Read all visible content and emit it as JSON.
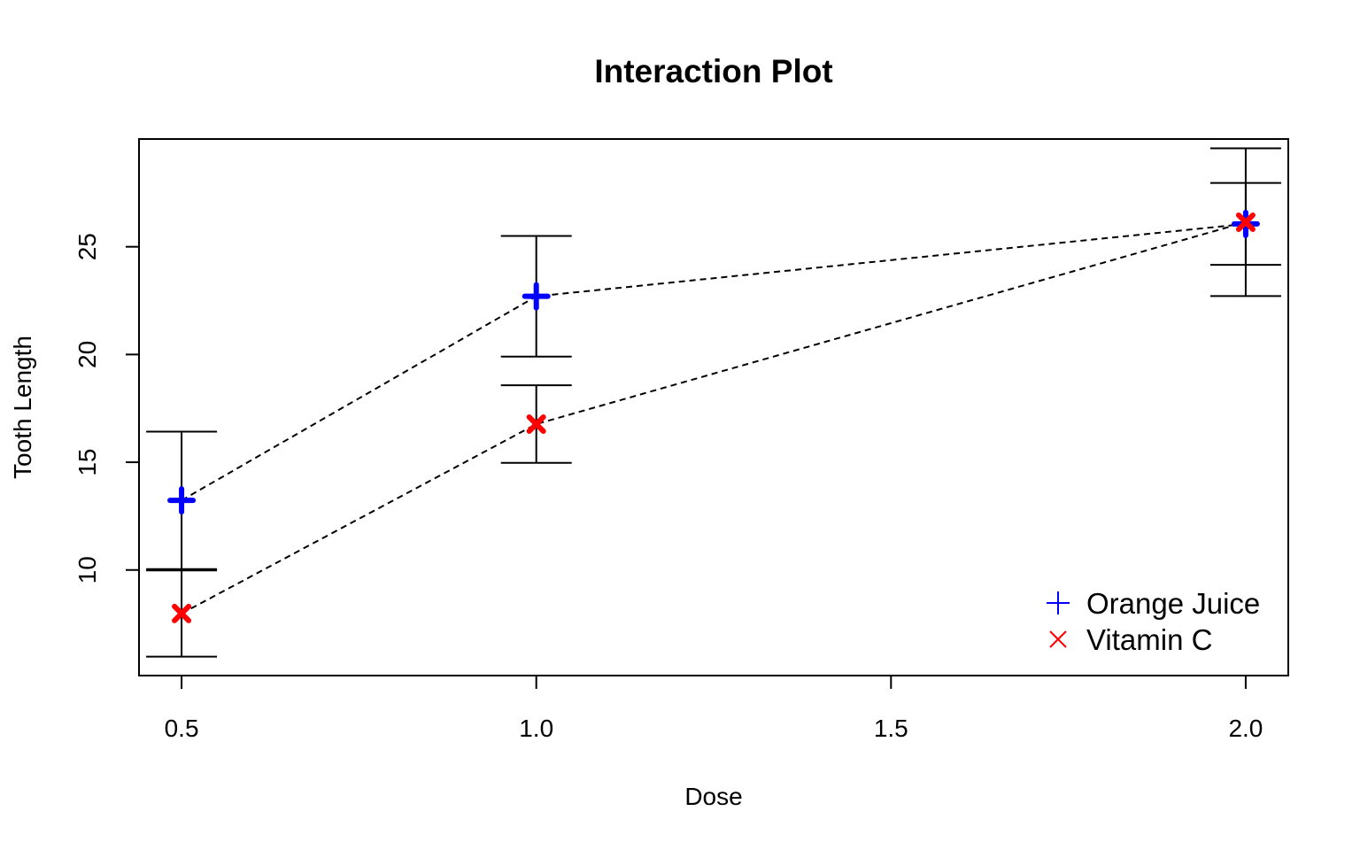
{
  "chart_data": {
    "type": "line",
    "title": "Interaction Plot",
    "xlabel": "Dose",
    "ylabel": "Tooth Length",
    "xlim": [
      0.44,
      2.06
    ],
    "ylim": [
      5.1,
      30.0
    ],
    "x_ticks": [
      0.5,
      1.0,
      1.5,
      2.0
    ],
    "x_tick_labels": [
      "0.5",
      "1.0",
      "1.5",
      "2.0"
    ],
    "y_ticks": [
      10,
      15,
      20,
      25
    ],
    "y_tick_labels": [
      "10",
      "15",
      "20",
      "25"
    ],
    "grid": false,
    "legend_position": "bottom-right",
    "line_style": "dashed",
    "x": [
      0.5,
      1.0,
      2.0
    ],
    "series": [
      {
        "name": "Orange Juice",
        "color": "#0000ff",
        "marker": "plus",
        "values": [
          13.23,
          22.7,
          26.06
        ],
        "lower": [
          10.04,
          19.9,
          24.16
        ],
        "upper": [
          16.42,
          25.5,
          27.96
        ]
      },
      {
        "name": "Vitamin C",
        "color": "#ff0000",
        "marker": "cross",
        "values": [
          7.98,
          16.77,
          26.14
        ],
        "lower": [
          5.98,
          14.97,
          22.71
        ],
        "upper": [
          9.98,
          18.57,
          29.57
        ]
      }
    ]
  }
}
